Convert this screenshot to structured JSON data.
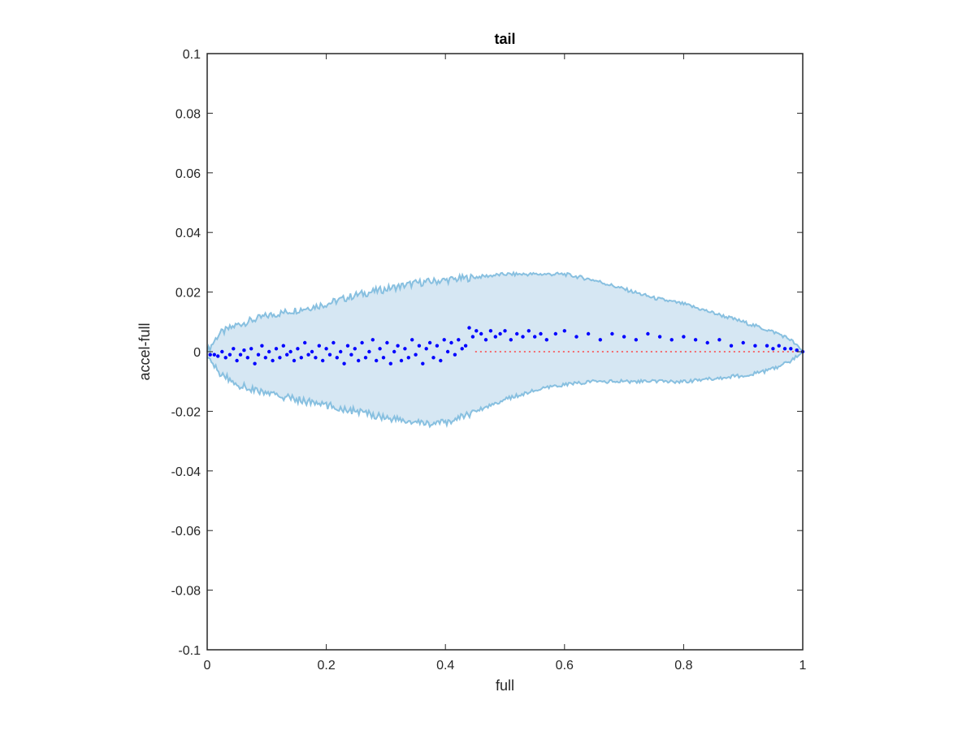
{
  "chart_data": {
    "type": "scatter",
    "title": "tail",
    "xlabel": "full",
    "ylabel": "accel-full",
    "xlim": [
      0,
      1
    ],
    "ylim": [
      -0.1,
      0.1
    ],
    "x_ticks": [
      "0",
      "0.2",
      "0.4",
      "0.6",
      "0.8",
      "1"
    ],
    "x_tick_values": [
      0,
      0.2,
      0.4,
      0.6,
      0.8,
      1
    ],
    "y_ticks": [
      "0.1",
      "0.08",
      "0.06",
      "0.04",
      "0.02",
      "0",
      "-0.02",
      "-0.04",
      "-0.06",
      "-0.08",
      "-0.1"
    ],
    "y_tick_values": [
      0.1,
      0.08,
      0.06,
      0.04,
      0.02,
      0,
      -0.02,
      -0.04,
      -0.06,
      -0.08,
      -0.1
    ],
    "grid": false,
    "band": {
      "x": [
        0,
        0.02,
        0.05,
        0.1,
        0.15,
        0.2,
        0.25,
        0.3,
        0.35,
        0.4,
        0.45,
        0.5,
        0.55,
        0.6,
        0.65,
        0.7,
        0.75,
        0.8,
        0.85,
        0.9,
        0.93,
        0.96,
        0.98,
        1.0
      ],
      "upper": [
        0,
        0.006,
        0.009,
        0.012,
        0.014,
        0.016,
        0.019,
        0.021,
        0.023,
        0.024,
        0.025,
        0.026,
        0.026,
        0.026,
        0.024,
        0.021,
        0.018,
        0.016,
        0.013,
        0.01,
        0.008,
        0.006,
        0.004,
        0.0
      ],
      "lower": [
        -0.002,
        -0.007,
        -0.011,
        -0.014,
        -0.016,
        -0.018,
        -0.02,
        -0.022,
        -0.024,
        -0.024,
        -0.02,
        -0.016,
        -0.013,
        -0.011,
        -0.01,
        -0.01,
        -0.01,
        -0.01,
        -0.009,
        -0.008,
        -0.007,
        -0.005,
        -0.003,
        0.0
      ],
      "fill_color": "#d6e7f3",
      "edge_color": "#88c0e0"
    },
    "series": [
      {
        "marker_color": "#0000ff",
        "x": [
          0.005,
          0.012,
          0.018,
          0.025,
          0.031,
          0.038,
          0.044,
          0.05,
          0.056,
          0.062,
          0.068,
          0.074,
          0.08,
          0.086,
          0.092,
          0.098,
          0.104,
          0.11,
          0.116,
          0.122,
          0.128,
          0.134,
          0.14,
          0.146,
          0.152,
          0.158,
          0.164,
          0.17,
          0.176,
          0.182,
          0.188,
          0.194,
          0.2,
          0.206,
          0.212,
          0.218,
          0.224,
          0.23,
          0.236,
          0.242,
          0.248,
          0.254,
          0.26,
          0.266,
          0.272,
          0.278,
          0.284,
          0.29,
          0.296,
          0.302,
          0.308,
          0.314,
          0.32,
          0.326,
          0.332,
          0.338,
          0.344,
          0.35,
          0.356,
          0.362,
          0.368,
          0.374,
          0.38,
          0.386,
          0.392,
          0.398,
          0.404,
          0.41,
          0.416,
          0.422,
          0.428,
          0.434,
          0.44,
          0.446,
          0.452,
          0.46,
          0.468,
          0.476,
          0.484,
          0.492,
          0.5,
          0.51,
          0.52,
          0.53,
          0.54,
          0.55,
          0.56,
          0.57,
          0.585,
          0.6,
          0.62,
          0.64,
          0.66,
          0.68,
          0.7,
          0.72,
          0.74,
          0.76,
          0.78,
          0.8,
          0.82,
          0.84,
          0.86,
          0.88,
          0.9,
          0.92,
          0.94,
          0.95,
          0.96,
          0.97,
          0.98,
          0.99,
          1.0
        ],
        "y": [
          -0.001,
          -0.001,
          -0.0015,
          0.0,
          -0.002,
          -0.001,
          0.001,
          -0.003,
          -0.001,
          0.0005,
          -0.002,
          0.001,
          -0.004,
          -0.001,
          0.002,
          -0.002,
          0.0,
          -0.003,
          0.001,
          -0.002,
          0.002,
          -0.001,
          0.0,
          -0.003,
          0.001,
          -0.002,
          0.003,
          -0.001,
          0.0,
          -0.002,
          0.002,
          -0.003,
          0.001,
          -0.001,
          0.003,
          -0.002,
          0.0,
          -0.004,
          0.002,
          -0.001,
          0.001,
          -0.003,
          0.003,
          -0.002,
          0.0,
          0.004,
          -0.003,
          0.001,
          -0.002,
          0.003,
          -0.004,
          0.0,
          0.002,
          -0.003,
          0.001,
          -0.002,
          0.004,
          -0.001,
          0.002,
          -0.004,
          0.001,
          0.003,
          -0.002,
          0.002,
          -0.003,
          0.004,
          0.0,
          0.003,
          -0.001,
          0.004,
          0.001,
          0.002,
          0.008,
          0.005,
          0.007,
          0.006,
          0.004,
          0.007,
          0.005,
          0.006,
          0.007,
          0.004,
          0.006,
          0.005,
          0.007,
          0.005,
          0.006,
          0.004,
          0.006,
          0.007,
          0.005,
          0.006,
          0.004,
          0.006,
          0.005,
          0.004,
          0.006,
          0.005,
          0.004,
          0.005,
          0.004,
          0.003,
          0.004,
          0.002,
          0.003,
          0.002,
          0.002,
          0.001,
          0.002,
          0.001,
          0.001,
          0.0005,
          0.0
        ]
      }
    ],
    "reference_line": {
      "y": 0,
      "x_from": 0.45,
      "x_to": 1,
      "color": "#ff4040"
    }
  }
}
